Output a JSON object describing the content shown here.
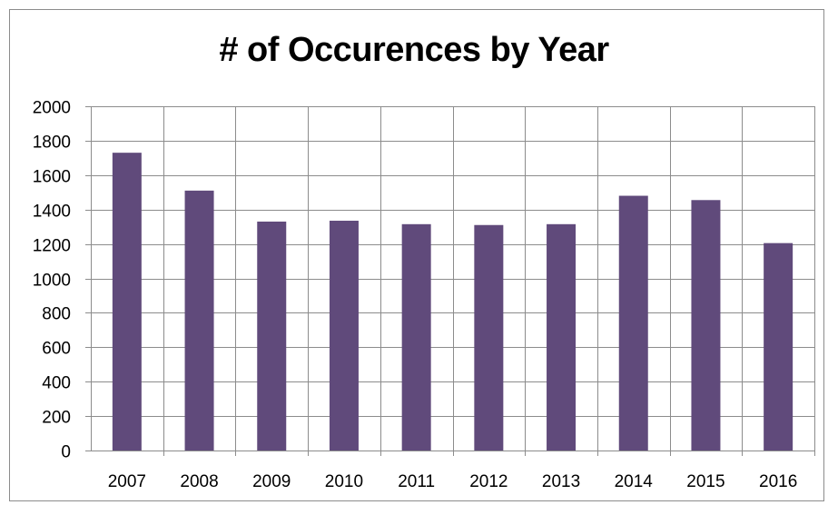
{
  "chart_data": {
    "type": "bar",
    "title": "# of Occurences by Year",
    "xlabel": "",
    "ylabel": "",
    "categories": [
      "2007",
      "2008",
      "2009",
      "2010",
      "2011",
      "2012",
      "2013",
      "2014",
      "2015",
      "2016"
    ],
    "values": [
      1730,
      1510,
      1330,
      1335,
      1315,
      1310,
      1315,
      1480,
      1455,
      1205
    ],
    "ylim": [
      0,
      2000
    ],
    "yticks": [
      "0",
      "200",
      "400",
      "600",
      "800",
      "1000",
      "1200",
      "1400",
      "1600",
      "1800",
      "2000"
    ],
    "grid": true,
    "legend": "none",
    "bar_color": "#604a7b"
  }
}
